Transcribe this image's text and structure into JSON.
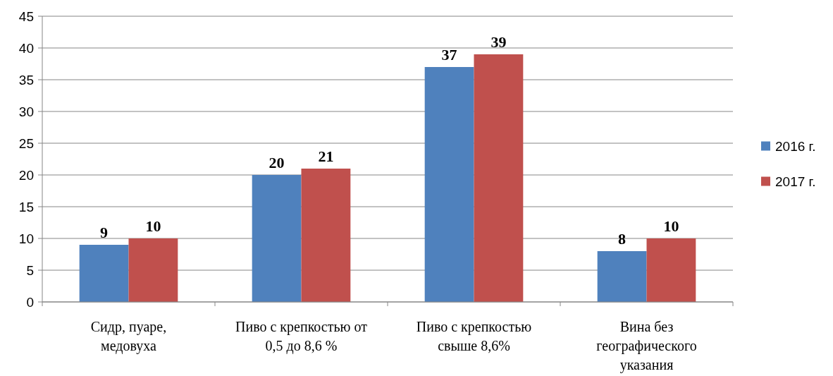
{
  "chart_data": {
    "type": "bar",
    "categories": [
      "Сидр, пуаре, медовуха",
      "Пиво с крепкостью от 0,5 до 8,6 %",
      "Пиво с крепкостью свыше 8,6%",
      "Вина без географического указания"
    ],
    "series": [
      {
        "name": "2016 г.",
        "color": "#4f81bd",
        "values": [
          9,
          20,
          37,
          8
        ]
      },
      {
        "name": "2017 г.",
        "color": "#c0504d",
        "values": [
          10,
          21,
          39,
          10
        ]
      }
    ],
    "ylim": [
      0,
      45
    ],
    "yticks": [
      0,
      5,
      10,
      15,
      20,
      25,
      30,
      35,
      40,
      45
    ],
    "grid": "y",
    "legend": "right",
    "data_labels": true
  }
}
